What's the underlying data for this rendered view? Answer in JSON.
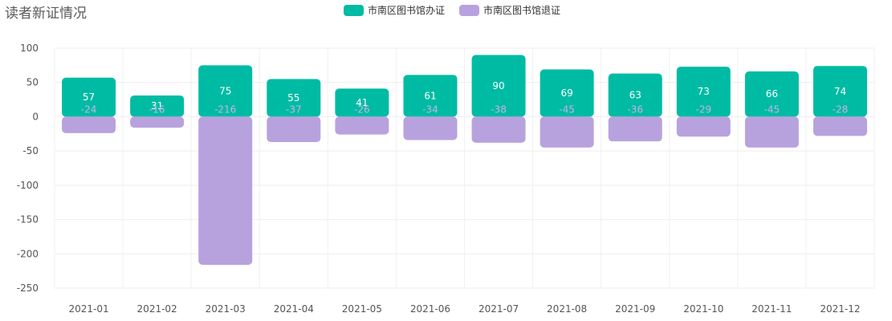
{
  "chart_data": {
    "type": "bar",
    "title": "读者新证情况",
    "categories": [
      "2021-01",
      "2021-02",
      "2021-03",
      "2021-04",
      "2021-05",
      "2021-06",
      "2021-07",
      "2021-08",
      "2021-09",
      "2021-10",
      "2021-11",
      "2021-12"
    ],
    "series": [
      {
        "name": "市南区图书馆办证",
        "color": "#00bba4",
        "values": [
          57,
          31,
          75,
          55,
          41,
          61,
          90,
          69,
          63,
          73,
          66,
          74
        ]
      },
      {
        "name": "市南区图书馆退证",
        "color": "#b8a2de",
        "values": [
          -24,
          -16,
          -216,
          -37,
          -26,
          -34,
          -38,
          -45,
          -36,
          -29,
          -45,
          -28
        ]
      }
    ],
    "ylim": [
      -250,
      100
    ],
    "yticks": [
      100,
      50,
      0,
      -50,
      -100,
      -150,
      -200,
      -250
    ],
    "grid": true,
    "legend_position": "top-center",
    "stacked": true
  }
}
